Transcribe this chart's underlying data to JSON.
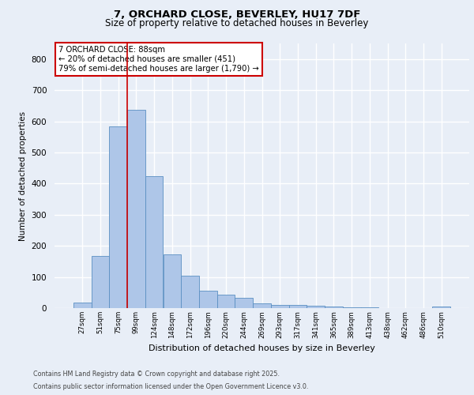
{
  "title_line1": "7, ORCHARD CLOSE, BEVERLEY, HU17 7DF",
  "title_line2": "Size of property relative to detached houses in Beverley",
  "xlabel": "Distribution of detached houses by size in Beverley",
  "ylabel": "Number of detached properties",
  "categories": [
    "27sqm",
    "51sqm",
    "75sqm",
    "99sqm",
    "124sqm",
    "148sqm",
    "172sqm",
    "196sqm",
    "220sqm",
    "244sqm",
    "269sqm",
    "293sqm",
    "317sqm",
    "341sqm",
    "365sqm",
    "389sqm",
    "413sqm",
    "438sqm",
    "462sqm",
    "486sqm",
    "510sqm"
  ],
  "values": [
    18,
    168,
    583,
    638,
    425,
    173,
    105,
    57,
    42,
    32,
    16,
    11,
    9,
    7,
    5,
    3,
    2,
    1,
    0,
    0,
    6
  ],
  "bar_color": "#aec6e8",
  "bar_edge_color": "#5a8fc2",
  "red_line_x": 2.5,
  "annotation_text": "7 ORCHARD CLOSE: 88sqm\n← 20% of detached houses are smaller (451)\n79% of semi-detached houses are larger (1,790) →",
  "annotation_box_color": "#ffffff",
  "annotation_border_color": "#cc0000",
  "ylim": [
    0,
    850
  ],
  "yticks": [
    0,
    100,
    200,
    300,
    400,
    500,
    600,
    700,
    800
  ],
  "footer_line1": "Contains HM Land Registry data © Crown copyright and database right 2025.",
  "footer_line2": "Contains public sector information licensed under the Open Government Licence v3.0.",
  "background_color": "#e8eef7",
  "plot_bg_color": "#e8eef7",
  "grid_color": "#ffffff"
}
